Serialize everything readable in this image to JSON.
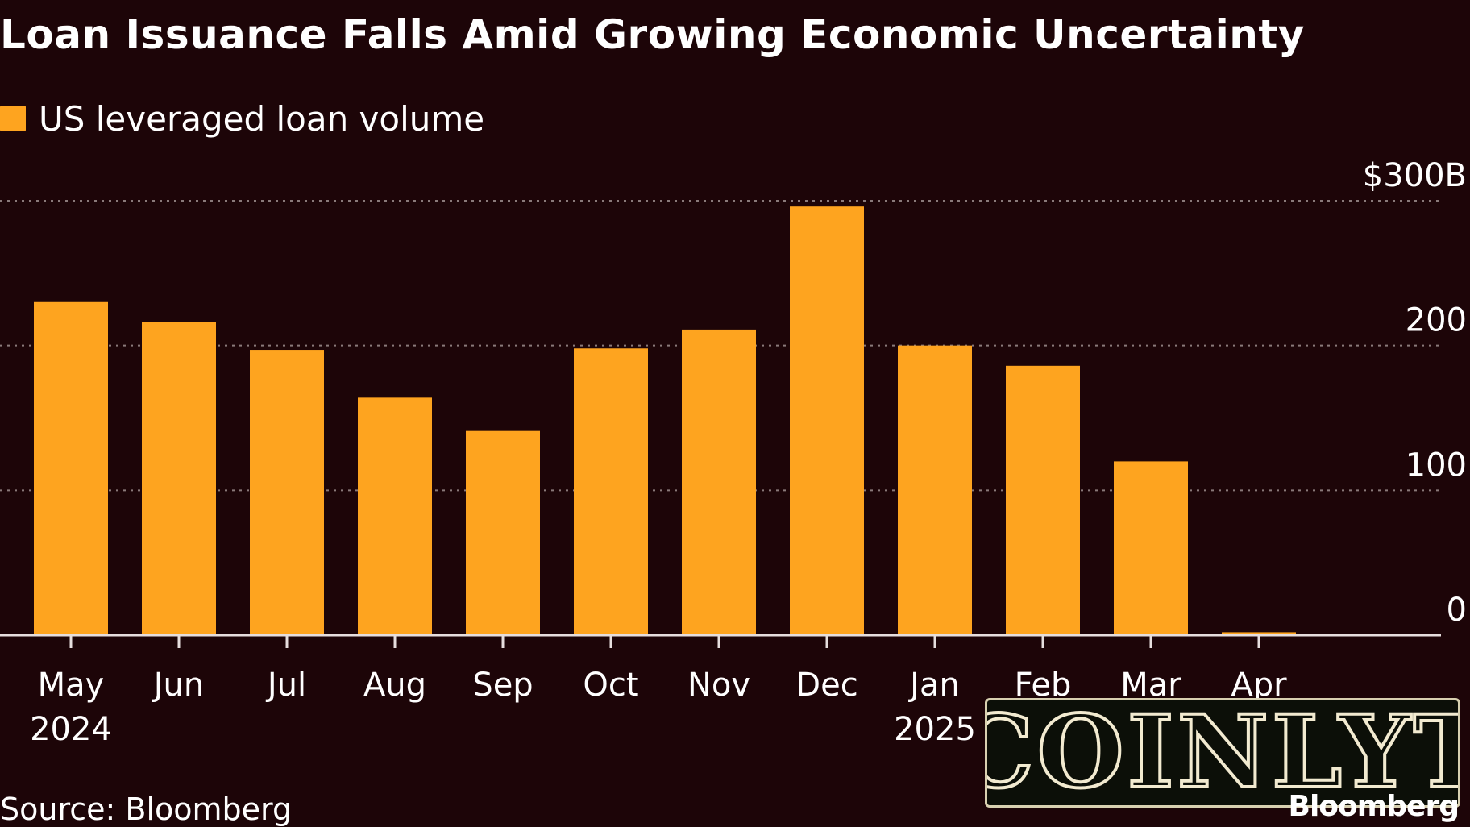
{
  "chart_data": {
    "type": "bar",
    "title": "Loan Issuance Falls Amid Growing Economic Uncertainty",
    "legend": [
      {
        "label": "US leveraged loan volume",
        "color": "#fea41f"
      }
    ],
    "legend_placement": "top-left",
    "categories": [
      "May",
      "Jun",
      "Jul",
      "Aug",
      "Sep",
      "Oct",
      "Nov",
      "Dec",
      "Jan",
      "Feb",
      "Mar",
      "Apr"
    ],
    "category_sublabels": [
      "2024",
      "",
      "",
      "",
      "",
      "",
      "",
      "",
      "2025",
      "",
      "",
      ""
    ],
    "series": [
      {
        "name": "US leveraged loan volume",
        "color": "#fea41f",
        "values": [
          230,
          216,
          197,
          164,
          141,
          198,
          211,
          296,
          200,
          186,
          120,
          2
        ]
      }
    ],
    "ylim": [
      0,
      300
    ],
    "y_ticks": [
      {
        "value": 0,
        "label": "0"
      },
      {
        "value": 100,
        "label": "100"
      },
      {
        "value": 200,
        "label": "200"
      },
      {
        "value": 300,
        "label": "$300B"
      }
    ],
    "y_axis_side": "right",
    "grid": true,
    "grid_style": "dotted",
    "xlabel": "",
    "ylabel": ""
  },
  "footer": {
    "source": "Source: Bloomberg",
    "brand": "Bloomberg"
  },
  "watermark": {
    "text": "COINLYT"
  },
  "colors": {
    "background": "#1d0508",
    "bar": "#fea41f",
    "text": "#ffffff",
    "grid": "#8a7a7a"
  }
}
